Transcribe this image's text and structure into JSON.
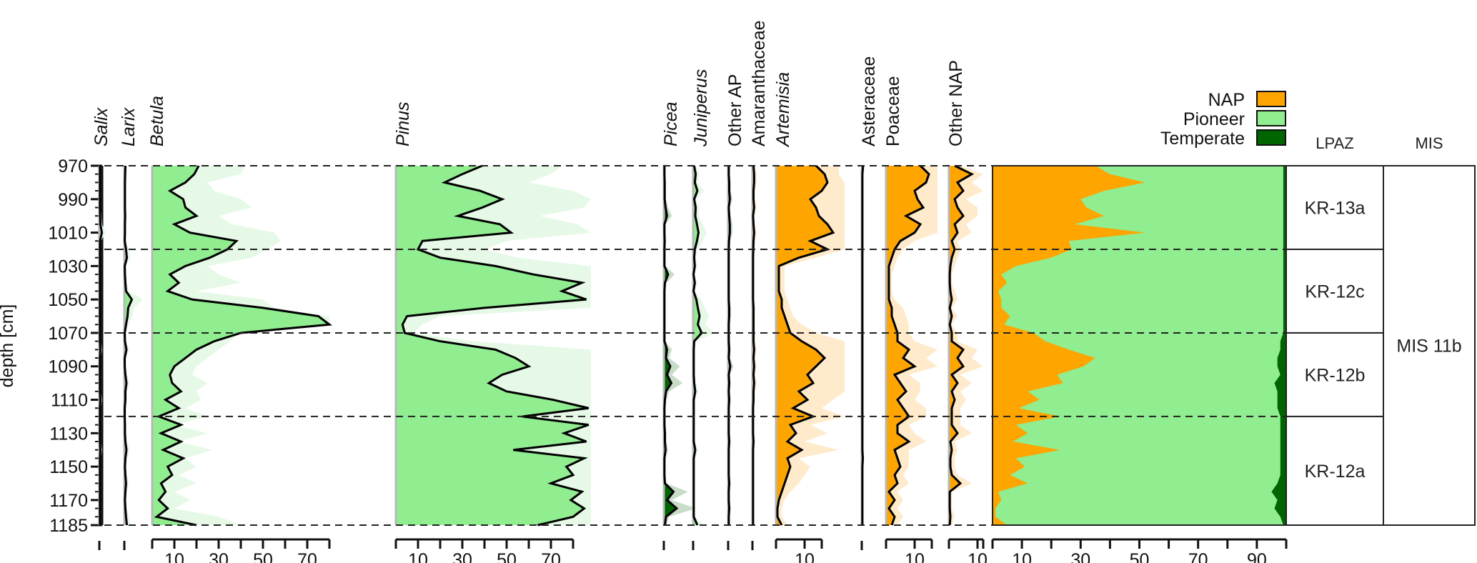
{
  "chart_data": {
    "type": "area",
    "title": "",
    "ylabel": "depth [cm]",
    "ylim": [
      970,
      1185
    ],
    "y_ticks": [
      970,
      990,
      1010,
      1030,
      1050,
      1070,
      1090,
      1110,
      1130,
      1150,
      1170,
      1185
    ],
    "y_minor_step": 5,
    "zone_boundaries": [
      1020,
      1070,
      1120
    ],
    "depths": [
      970,
      975,
      980,
      985,
      990,
      995,
      1000,
      1005,
      1010,
      1015,
      1020,
      1025,
      1030,
      1035,
      1040,
      1045,
      1050,
      1055,
      1060,
      1065,
      1070,
      1075,
      1080,
      1085,
      1090,
      1095,
      1100,
      1105,
      1110,
      1115,
      1120,
      1125,
      1130,
      1135,
      1140,
      1145,
      1150,
      1155,
      1160,
      1165,
      1170,
      1175,
      1180,
      1185
    ],
    "taxa": [
      {
        "name": "Salix",
        "italic": true,
        "group": "Pioneer",
        "xmax": 3,
        "ticks": [],
        "values": [
          0.3,
          0.3,
          0.3,
          0.3,
          0.3,
          0.3,
          0.4,
          0.5,
          1.2,
          0.3,
          0.3,
          0.3,
          0.3,
          0.3,
          0.3,
          0.3,
          0.3,
          0.3,
          0.3,
          0.3,
          0.3,
          0.3,
          0.5,
          0.3,
          0.3,
          0.3,
          0.3,
          0.3,
          0.5,
          0.3,
          0.3,
          0.3,
          0.3,
          0.3,
          0.5,
          0.3,
          0.3,
          0.3,
          0.3,
          0.3,
          0.3,
          0.3,
          0.3,
          0.3
        ]
      },
      {
        "name": "Larix",
        "italic": true,
        "group": "Pioneer",
        "xmax": 8,
        "ticks": [],
        "values": [
          0.5,
          0.4,
          0.3,
          0.3,
          0.3,
          0.3,
          0.4,
          0.3,
          0.3,
          0.2,
          0.8,
          1.2,
          0.2,
          0.3,
          0.5,
          0.8,
          3.5,
          1.8,
          1.5,
          0.8,
          0.2,
          0.3,
          1.0,
          0.2,
          0.2,
          0.5,
          1.0,
          0.5,
          0.5,
          0.2,
          0.2,
          0.3,
          0.3,
          0.5,
          1.0,
          0.5,
          0.3,
          0.5,
          0.8,
          0.5,
          0.3,
          0.5,
          0.8,
          1.2
        ]
      },
      {
        "name": "Betula",
        "italic": true,
        "group": "Pioneer",
        "xmax": 80,
        "ticks": [
          10,
          30,
          50,
          70
        ],
        "values": [
          21,
          19,
          15,
          8,
          14,
          15,
          20,
          10,
          17,
          38,
          34,
          26,
          15,
          8,
          12,
          7,
          18,
          50,
          75,
          80,
          40,
          28,
          20,
          15,
          10,
          8,
          9,
          13,
          6,
          12,
          3,
          13,
          4,
          13,
          5,
          14,
          7,
          9,
          4,
          6,
          3,
          7,
          2,
          20
        ],
        "exaggerated": [
          42,
          40,
          25,
          28,
          40,
          45,
          30,
          36,
          55,
          58,
          52,
          45,
          25,
          30,
          40,
          20,
          50,
          55,
          80,
          80,
          40,
          35,
          30,
          25,
          20,
          18,
          25,
          20,
          22,
          15,
          25,
          10,
          25,
          12,
          27,
          15,
          20,
          12,
          20,
          10,
          17,
          10,
          30,
          40
        ]
      },
      {
        "name": "Pinus",
        "italic": true,
        "group": "Pioneer",
        "xmax": 80,
        "ticks": [
          10,
          30,
          50,
          70
        ],
        "values": [
          39,
          30,
          22,
          38,
          48,
          39,
          28,
          47,
          52,
          12,
          10,
          20,
          45,
          62,
          84,
          75,
          86,
          40,
          5,
          3,
          4,
          20,
          45,
          54,
          60,
          48,
          42,
          50,
          71,
          87,
          57,
          87,
          76,
          86,
          53,
          85,
          77,
          80,
          70,
          84,
          79,
          85,
          80,
          64
        ],
        "exaggerated": [
          75,
          70,
          60,
          80,
          88,
          85,
          65,
          82,
          88,
          50,
          40,
          55,
          88,
          88,
          88,
          88,
          88,
          88,
          20,
          12,
          8,
          35,
          88,
          88,
          88,
          88,
          88,
          88,
          88,
          88,
          88,
          88,
          88,
          88,
          88,
          88,
          88,
          88,
          88,
          88,
          88,
          88,
          88,
          88
        ]
      },
      {
        "name": "Picea",
        "italic": true,
        "group": "Temperate",
        "xmax": 8,
        "ticks": [],
        "values": [
          0.3,
          0.3,
          0.4,
          0.4,
          0.4,
          0.8,
          1.5,
          0.3,
          0.3,
          0.4,
          0.3,
          0.3,
          0.3,
          2.0,
          0.5,
          0.3,
          0.3,
          0.3,
          0.3,
          0.3,
          0.3,
          0.3,
          1.5,
          1.0,
          3.0,
          1.5,
          3.5,
          1.0,
          0.5,
          0.3,
          0.3,
          0.3,
          0.5,
          0.5,
          0.8,
          0.3,
          0.3,
          0.3,
          0.5,
          4.5,
          1.5,
          6.0,
          1.0,
          0.5
        ]
      },
      {
        "name": "Juniperus",
        "italic": true,
        "group": "Pioneer",
        "xmax": 8,
        "ticks": [],
        "values": [
          0.5,
          1.2,
          0.8,
          2.0,
          0.5,
          1.2,
          1.0,
          1.8,
          2.5,
          1.8,
          0.8,
          0.5,
          0.8,
          0.2,
          0.8,
          0.2,
          1.5,
          2.2,
          3.0,
          2.2,
          4.0,
          0.5,
          0.3,
          0.3,
          0.3,
          0.3,
          0.5,
          1.0,
          0.3,
          0.3,
          0.3,
          0.3,
          0.3,
          0.3,
          1.0,
          0.3,
          0.3,
          0.3,
          0.3,
          0.3,
          0.3,
          0.3,
          0.3,
          2.0
        ]
      },
      {
        "name": "Other AP",
        "italic": false,
        "group": "Temperate",
        "xmax": 8,
        "ticks": [],
        "values": [
          0.3,
          0.3,
          0.5,
          0.5,
          0.8,
          0.3,
          0.5,
          0.8,
          0.8,
          0.4,
          0.3,
          0.3,
          0.3,
          0.3,
          0.3,
          0.3,
          0.3,
          0.5,
          0.5,
          0.3,
          0.3,
          0.3,
          0.5,
          0.3,
          1.0,
          0.3,
          0.5,
          0.3,
          0.5,
          0.3,
          0.3,
          0.3,
          0.3,
          0.5,
          0.3,
          0.3,
          0.3,
          0.3,
          0.5,
          0.3,
          0.3,
          0.5,
          0.3,
          0.3
        ]
      },
      {
        "name": "Amaranthaceae",
        "italic": false,
        "group": "NAP",
        "xmax": 8,
        "ticks": [],
        "values": [
          0.5,
          0.8,
          0.8,
          0.5,
          0.5,
          0.8,
          0.3,
          0.5,
          0.8,
          0.5,
          0.4,
          0.3,
          0.3,
          0.3,
          0.3,
          0.3,
          0.3,
          0.5,
          0.5,
          0.5,
          0.5,
          0.5,
          0.8,
          0.5,
          0.8,
          0.5,
          0.8,
          0.5,
          0.5,
          0.3,
          0.3,
          0.3,
          0.3,
          0.5,
          0.3,
          0.3,
          0.3,
          0.3,
          0.3,
          0.3,
          0.3,
          0.3,
          0.3,
          0.3
        ]
      },
      {
        "name": "Artemisia",
        "italic": true,
        "group": "NAP",
        "xmax": 16,
        "ticks": [
          10
        ],
        "values": [
          14,
          17,
          18,
          16,
          12,
          14,
          15,
          18,
          20,
          12,
          18,
          8,
          1,
          1,
          1,
          1,
          2,
          2,
          3,
          4,
          5,
          9,
          14,
          17,
          14,
          11,
          13,
          8,
          11,
          6,
          13,
          5,
          7,
          4,
          9,
          4,
          5,
          4,
          3,
          2,
          1,
          0.5,
          0.5,
          2
        ],
        "exaggerated": [
          22,
          22,
          24,
          24,
          24,
          24,
          24,
          24,
          24,
          24,
          24,
          14,
          3,
          3,
          3,
          3,
          4,
          5,
          6,
          9,
          14,
          24,
          24,
          24,
          24,
          24,
          24,
          24,
          20,
          16,
          24,
          12,
          18,
          10,
          22,
          8,
          12,
          10,
          8,
          5,
          3,
          2,
          2,
          4
        ]
      },
      {
        "name": "Asteraceae",
        "italic": false,
        "group": "NAP",
        "xmax": 4,
        "ticks": [],
        "values": [
          0.6,
          0.3,
          0.3,
          0.3,
          0.3,
          0.3,
          0.3,
          0.3,
          0.3,
          0.3,
          0.3,
          0.3,
          0.3,
          0.3,
          0.3,
          0.3,
          0.3,
          0.3,
          0.3,
          0.3,
          0.3,
          0.3,
          0.3,
          0.3,
          0.3,
          0.3,
          0.3,
          0.3,
          0.3,
          0.3,
          0.3,
          0.3,
          0.3,
          0.3,
          0.3,
          0.5,
          0.3,
          0.3,
          0.3,
          0.3,
          0.3,
          0.3,
          0.3,
          0.3
        ]
      },
      {
        "name": "Poaceae",
        "italic": false,
        "group": "NAP",
        "xmax": 16,
        "ticks": [
          10
        ],
        "values": [
          12,
          15,
          14,
          10,
          11,
          13,
          7,
          12,
          10,
          5,
          3,
          2,
          1,
          1,
          1,
          1,
          1,
          2,
          2,
          3,
          4,
          4,
          8,
          6,
          10,
          3,
          5,
          7,
          4,
          6,
          8,
          4,
          4,
          8,
          3,
          4,
          5,
          3,
          4,
          1,
          3,
          1,
          3,
          2
        ],
        "exaggerated": [
          18,
          18,
          18,
          18,
          18,
          18,
          18,
          18,
          18,
          10,
          6,
          4,
          3,
          2,
          2,
          2,
          3,
          6,
          7,
          8,
          8,
          10,
          18,
          14,
          18,
          8,
          12,
          12,
          10,
          14,
          14,
          8,
          10,
          14,
          8,
          8,
          8,
          6,
          8,
          4,
          6,
          4,
          6,
          4
        ]
      },
      {
        "name": "Other NAP",
        "italic": false,
        "group": "NAP",
        "xmax": 12,
        "ticks": [
          10
        ],
        "values": [
          2,
          8,
          3,
          5,
          2,
          3,
          5,
          2,
          3,
          1,
          2,
          1,
          0.5,
          0.3,
          0.3,
          0.5,
          1,
          0.3,
          1,
          0.3,
          1,
          1,
          5,
          3,
          5,
          1,
          3,
          1,
          2,
          1,
          1,
          1,
          3,
          0.5,
          1,
          0.5,
          0.5,
          1,
          4,
          0.3,
          0.3,
          0.3,
          0.5,
          0.3
        ],
        "exaggerated": [
          4,
          12,
          8,
          12,
          6,
          10,
          10,
          6,
          8,
          3,
          4,
          3,
          2,
          1,
          1,
          2,
          3,
          1,
          3,
          1,
          3,
          3,
          10,
          8,
          12,
          4,
          8,
          4,
          6,
          4,
          4,
          4,
          8,
          2,
          3,
          2,
          2,
          3,
          8,
          1,
          1,
          1,
          2,
          1
        ]
      }
    ],
    "summary": {
      "xlim": [
        0,
        100
      ],
      "ticks": [
        10,
        30,
        50,
        70,
        90
      ],
      "series": [
        {
          "name": "NAP",
          "values": [
            35,
            40,
            52,
            38,
            30,
            32,
            38,
            28,
            52,
            26,
            27,
            20,
            8,
            3,
            5,
            2,
            3,
            3,
            6,
            4,
            14,
            18,
            26,
            35,
            31,
            22,
            24,
            12,
            16,
            9,
            23,
            8,
            12,
            7,
            23,
            8,
            11,
            6,
            12,
            2,
            3,
            1,
            1,
            5
          ]
        },
        {
          "name": "Pioneer",
          "values": [
            64,
            59,
            47,
            61,
            69,
            67,
            61,
            71,
            47,
            73,
            72,
            79,
            91,
            96,
            94,
            97,
            96,
            96,
            93,
            95,
            85,
            80,
            72,
            62,
            66,
            76,
            72,
            85,
            81,
            88,
            75,
            90,
            86,
            91,
            75,
            90,
            87,
            92,
            85,
            93,
            94,
            95,
            97,
            94
          ]
        },
        {
          "name": "Temperate",
          "values": [
            1,
            1,
            1,
            1,
            1,
            1,
            1,
            1,
            1,
            1,
            1,
            1,
            1,
            1,
            1,
            1,
            1,
            1,
            1,
            1,
            1,
            2,
            2,
            3,
            3,
            2,
            4,
            3,
            3,
            3,
            2,
            2,
            2,
            2,
            2,
            2,
            2,
            2,
            3,
            5,
            3,
            4,
            2,
            1
          ]
        }
      ]
    },
    "legend": {
      "placement": "top-right",
      "items": [
        {
          "label": "NAP",
          "color": "#FFA500"
        },
        {
          "label": "Pioneer",
          "color": "#90EE90"
        },
        {
          "label": "Temperate",
          "color": "#006400"
        }
      ]
    },
    "lpaz": {
      "header": "LPAZ",
      "zones": [
        {
          "label": "KR-13a",
          "from": 970,
          "to": 1020
        },
        {
          "label": "KR-12c",
          "from": 1020,
          "to": 1070
        },
        {
          "label": "KR-12b",
          "from": 1070,
          "to": 1120
        },
        {
          "label": "KR-12a",
          "from": 1120,
          "to": 1185
        }
      ]
    },
    "mis": {
      "header": "MIS",
      "zones": [
        {
          "label": "MIS 11b",
          "from": 970,
          "to": 1185
        }
      ]
    },
    "colors": {
      "pioneer": "#90EE90",
      "pioneer_exaggerated": "#E6F9E6",
      "temperate": "#006400",
      "temperate_exaggerated": "#C8DCC8",
      "nap": "#FFA500",
      "nap_exaggerated": "#FFEBCC"
    }
  }
}
